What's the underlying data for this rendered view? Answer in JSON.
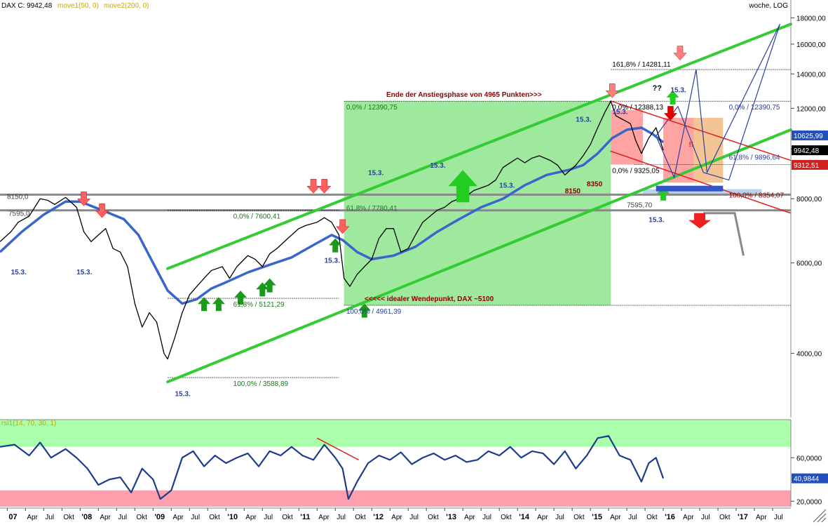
{
  "header": {
    "instrument": "DAX C: 9942,48",
    "ma1": "move1(50, 0)",
    "ma2": "move2(200, 0)",
    "timeframe": "woche, LOG"
  },
  "colors": {
    "price": "#000000",
    "ma": "#3a66cc",
    "channel": "#33cc33",
    "rsi_line": "#1e3c8c",
    "rsi_overbought": "#aaffaa",
    "rsi_oversold": "#ff9fae",
    "green_zone": "#7ee27e",
    "red_zone": "#ff8c8c",
    "orange_zone": "#f0b070",
    "annotation_red": "#8b0000",
    "annotation_blue": "#2a3fa0",
    "annotation_green": "#1a7a1a"
  },
  "chart_data": [
    {
      "type": "line",
      "panel": "price",
      "scale": "log",
      "ylim": [
        3000,
        19500
      ],
      "y_ticks": [
        "4000,00",
        "6000,00",
        "8000,00",
        "10000,00",
        "12000,00",
        "14000,00",
        "16000,00",
        "18000,00"
      ],
      "y_tick_values": [
        4000,
        6000,
        8000,
        10000,
        12000,
        14000,
        16000,
        18000
      ],
      "x_ticks": [
        "07",
        "Apr",
        "Jul",
        "Okt",
        "'08",
        "Apr",
        "Jul",
        "Okt",
        "'09",
        "Apr",
        "Jul",
        "Okt",
        "'10",
        "Apr",
        "Jul",
        "Okt",
        "'11",
        "Apr",
        "Jul",
        "Okt",
        "'12",
        "Apr",
        "Jul",
        "Okt",
        "'13",
        "Apr",
        "Jul",
        "Okt",
        "'14",
        "Apr",
        "Jul",
        "Okt",
        "'15",
        "Apr",
        "Jul",
        "Okt",
        "'16",
        "Apr",
        "Jul",
        "Okt",
        "'17",
        "Apr",
        "Jul"
      ],
      "x_tick_times": [
        2007.0,
        2007.25,
        2007.5,
        2007.75,
        2008.0,
        2008.25,
        2008.5,
        2008.75,
        2009.0,
        2009.25,
        2009.5,
        2009.75,
        2010.0,
        2010.25,
        2010.5,
        2010.75,
        2011.0,
        2011.25,
        2011.5,
        2011.75,
        2012.0,
        2012.25,
        2012.5,
        2012.75,
        2013.0,
        2013.25,
        2013.5,
        2013.75,
        2014.0,
        2014.25,
        2014.5,
        2014.75,
        2015.0,
        2015.25,
        2015.5,
        2015.75,
        2016.0,
        2016.25,
        2016.5,
        2016.75,
        2017.0,
        2017.25,
        2017.5
      ],
      "series": [
        {
          "name": "",
          "x": [
            2006.9,
            2007.05,
            2007.15,
            2007.3,
            2007.45,
            2007.55,
            2007.65,
            2007.8,
            2007.95,
            2008.05,
            2008.15,
            2008.25,
            2008.35,
            2008.45,
            2008.55,
            2008.65,
            2008.75,
            2008.85,
            2008.95,
            2009.05,
            2009.15,
            2009.2,
            2009.3,
            2009.4,
            2009.5,
            2009.6,
            2009.7,
            2009.8,
            2009.95,
            2010.05,
            2010.15,
            2010.3,
            2010.4,
            2010.5,
            2010.6,
            2010.7,
            2010.85,
            2011.0,
            2011.1,
            2011.25,
            2011.35,
            2011.45,
            2011.55,
            2011.62,
            2011.7,
            2011.8,
            2011.9,
            2012.0,
            2012.1,
            2012.2,
            2012.3,
            2012.4,
            2012.5,
            2012.6,
            2012.7,
            2012.8,
            2012.9,
            2013.0,
            2013.1,
            2013.2,
            2013.3,
            2013.4,
            2013.5,
            2013.6,
            2013.7,
            2013.8,
            2013.9,
            2014.0,
            2014.1,
            2014.2,
            2014.3,
            2014.45,
            2014.55,
            2014.65,
            2014.8,
            2014.9,
            2015.0,
            2015.1,
            2015.2,
            2015.28,
            2015.35,
            2015.45,
            2015.55,
            2015.62,
            2015.7,
            2015.8,
            2015.9,
            2016.0
          ],
          "values": [
            6600,
            6900,
            7200,
            7400,
            8000,
            7950,
            7800,
            8050,
            7700,
            6900,
            6600,
            6800,
            7000,
            6400,
            6300,
            5900,
            5000,
            4500,
            4800,
            4600,
            4000,
            3900,
            4300,
            4800,
            5200,
            5400,
            5600,
            5800,
            5900,
            5600,
            5900,
            6200,
            6100,
            5900,
            6250,
            6400,
            6700,
            7000,
            7100,
            7200,
            7350,
            7200,
            6800,
            5600,
            5400,
            5700,
            5900,
            6100,
            6700,
            7000,
            7000,
            6300,
            6400,
            6800,
            7200,
            7400,
            7600,
            7700,
            7900,
            8000,
            8100,
            8300,
            8400,
            8500,
            8700,
            9200,
            9400,
            9600,
            9400,
            9600,
            9700,
            9500,
            9300,
            8900,
            9300,
            9700,
            10200,
            11000,
            11800,
            12390,
            11600,
            11400,
            11200,
            10400,
            9800,
            10500,
            11000,
            9942
          ]
        },
        {
          "name": "",
          "x": [
            2006.9,
            2007.2,
            2007.5,
            2007.8,
            2008.0,
            2008.3,
            2008.6,
            2008.8,
            2009.0,
            2009.2,
            2009.4,
            2009.6,
            2009.8,
            2010.0,
            2010.3,
            2010.6,
            2010.9,
            2011.2,
            2011.45,
            2011.6,
            2011.8,
            2012.0,
            2012.3,
            2012.6,
            2012.9,
            2013.2,
            2013.5,
            2013.8,
            2014.1,
            2014.4,
            2014.7,
            2014.9,
            2015.1,
            2015.3,
            2015.5,
            2015.7,
            2015.85,
            2016.0
          ],
          "values": [
            6300,
            6900,
            7450,
            7900,
            7900,
            7600,
            7300,
            6800,
            6000,
            5300,
            5000,
            5100,
            5350,
            5500,
            5750,
            5950,
            6150,
            6500,
            6800,
            6650,
            6300,
            6100,
            6200,
            6450,
            6900,
            7300,
            7700,
            8000,
            8500,
            8900,
            9100,
            9300,
            9800,
            10500,
            10900,
            11000,
            10700,
            10300
          ]
        }
      ],
      "end_value_labels": [
        "10625,99",
        "9942,48",
        "9312,51"
      ],
      "annotations": [
        "Ende der Anstiegsphase von 4965 Punkten>>>",
        "<<<<< idealer Wendepunkt, DAX ~5100",
        "0,0% / 12390,75",
        "100,0% / 4961,39",
        "0,0% / 7600,41",
        "61,8% / 7780,41",
        "61,8% / 5121,29",
        "100,0% / 3588,89",
        "161,8% / 14281,11",
        "0,0% / 12388,13",
        "0,0% / 9325,05",
        "0,0% / 12390,75",
        "61,8% / 9896,64",
        "100,0% / 8354,07",
        "7595,70",
        "8150,0",
        "7595,0",
        "8150",
        "8350",
        "??",
        "!!",
        "15.3."
      ]
    },
    {
      "type": "line",
      "panel": "rsi",
      "title": "rsi1(14, 70, 30, 1)",
      "ylim": [
        15,
        95
      ],
      "y_ticks": [
        "20,0000",
        "60,0000"
      ],
      "y_tick_values": [
        20,
        60
      ],
      "overbought": 70,
      "oversold": 30,
      "series": [
        {
          "name": "",
          "x": [
            2006.9,
            2007.1,
            2007.3,
            2007.45,
            2007.6,
            2007.8,
            2007.95,
            2008.1,
            2008.25,
            2008.4,
            2008.55,
            2008.7,
            2008.85,
            2009.0,
            2009.1,
            2009.25,
            2009.4,
            2009.55,
            2009.7,
            2009.85,
            2010.0,
            2010.15,
            2010.3,
            2010.45,
            2010.6,
            2010.75,
            2010.9,
            2011.05,
            2011.2,
            2011.35,
            2011.5,
            2011.6,
            2011.68,
            2011.8,
            2011.95,
            2012.1,
            2012.25,
            2012.4,
            2012.55,
            2012.7,
            2012.85,
            2013.0,
            2013.15,
            2013.3,
            2013.45,
            2013.6,
            2013.75,
            2013.9,
            2014.05,
            2014.2,
            2014.35,
            2014.5,
            2014.65,
            2014.8,
            2014.95,
            2015.1,
            2015.25,
            2015.4,
            2015.55,
            2015.7,
            2015.8,
            2015.9,
            2016.0
          ],
          "values": [
            70,
            72,
            62,
            74,
            60,
            68,
            60,
            50,
            35,
            40,
            42,
            28,
            50,
            40,
            22,
            30,
            60,
            66,
            52,
            62,
            55,
            60,
            64,
            52,
            66,
            62,
            70,
            62,
            58,
            72,
            60,
            50,
            22,
            38,
            55,
            62,
            58,
            65,
            54,
            60,
            64,
            58,
            62,
            56,
            58,
            66,
            62,
            70,
            60,
            66,
            64,
            54,
            66,
            50,
            62,
            78,
            80,
            62,
            58,
            38,
            55,
            60,
            41
          ]
        }
      ],
      "end_value_label": "40,9844"
    }
  ]
}
